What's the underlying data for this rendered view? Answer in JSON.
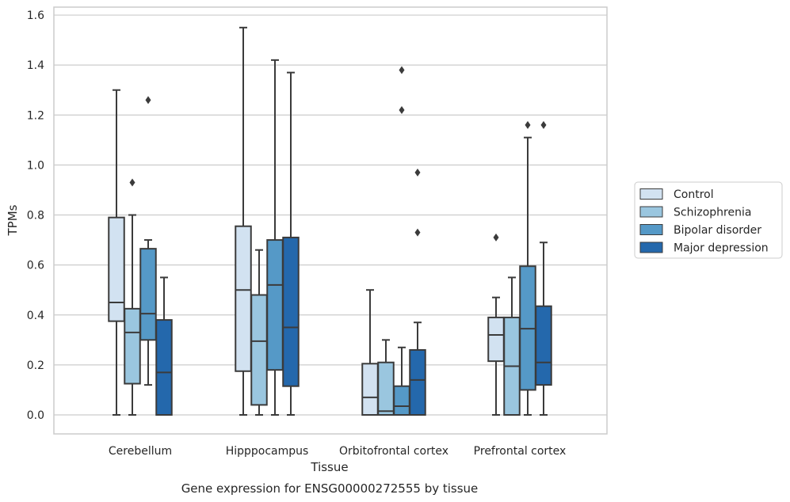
{
  "chart_data": {
    "type": "boxplot",
    "xlabel": "Tissue",
    "ylabel": "TPMs",
    "caption": "Gene expression for ENSG00000272555 by tissue",
    "ylim": [
      -0.075,
      1.63
    ],
    "yticks": [
      "0.0",
      "0.2",
      "0.4",
      "0.6",
      "0.8",
      "1.0",
      "1.2",
      "1.4",
      "1.6"
    ],
    "grid": "horizontal",
    "legend_position": "right",
    "categories": [
      "Cerebellum",
      "Hipppocampus",
      "Orbitofrontal cortex",
      "Prefrontal cortex"
    ],
    "series": [
      {
        "name": "Control",
        "color": "#d2e2f1",
        "boxes": [
          {
            "whislo": 0.0,
            "q1": 0.375,
            "med": 0.45,
            "q3": 0.79,
            "whishi": 1.3,
            "fliers": []
          },
          {
            "whislo": 0.0,
            "q1": 0.175,
            "med": 0.5,
            "q3": 0.755,
            "whishi": 1.55,
            "fliers": []
          },
          {
            "whislo": 0.0,
            "q1": 0.0,
            "med": 0.07,
            "q3": 0.205,
            "whishi": 0.5,
            "fliers": []
          },
          {
            "whislo": 0.0,
            "q1": 0.215,
            "med": 0.32,
            "q3": 0.39,
            "whishi": 0.47,
            "fliers": [
              0.71
            ]
          }
        ]
      },
      {
        "name": "Schizophrenia",
        "color": "#9ac6df",
        "boxes": [
          {
            "whislo": 0.0,
            "q1": 0.125,
            "med": 0.33,
            "q3": 0.425,
            "whishi": 0.8,
            "fliers": [
              0.93
            ]
          },
          {
            "whislo": 0.0,
            "q1": 0.04,
            "med": 0.295,
            "q3": 0.48,
            "whishi": 0.66,
            "fliers": []
          },
          {
            "whislo": 0.0,
            "q1": 0.0,
            "med": 0.015,
            "q3": 0.21,
            "whishi": 0.3,
            "fliers": []
          },
          {
            "whislo": 0.0,
            "q1": 0.0,
            "med": 0.195,
            "q3": 0.39,
            "whishi": 0.55,
            "fliers": []
          }
        ]
      },
      {
        "name": "Bipolar disorder",
        "color": "#5599c7",
        "boxes": [
          {
            "whislo": 0.12,
            "q1": 0.3,
            "med": 0.405,
            "q3": 0.665,
            "whishi": 0.7,
            "fliers": [
              1.26
            ]
          },
          {
            "whislo": 0.0,
            "q1": 0.18,
            "med": 0.52,
            "q3": 0.7,
            "whishi": 1.42,
            "fliers": []
          },
          {
            "whislo": 0.0,
            "q1": 0.0,
            "med": 0.035,
            "q3": 0.115,
            "whishi": 0.27,
            "fliers": [
              1.38,
              1.22
            ]
          },
          {
            "whislo": 0.0,
            "q1": 0.1,
            "med": 0.345,
            "q3": 0.595,
            "whishi": 1.11,
            "fliers": [
              1.16
            ]
          }
        ]
      },
      {
        "name": "Major depression",
        "color": "#2468ac",
        "boxes": [
          {
            "whislo": 0.0,
            "q1": 0.0,
            "med": 0.17,
            "q3": 0.38,
            "whishi": 0.55,
            "fliers": []
          },
          {
            "whislo": 0.0,
            "q1": 0.115,
            "med": 0.35,
            "q3": 0.71,
            "whishi": 1.37,
            "fliers": []
          },
          {
            "whislo": 0.0,
            "q1": 0.0,
            "med": 0.14,
            "q3": 0.26,
            "whishi": 0.37,
            "fliers": [
              0.97,
              0.73
            ]
          },
          {
            "whislo": 0.0,
            "q1": 0.12,
            "med": 0.21,
            "q3": 0.435,
            "whishi": 0.69,
            "fliers": [
              1.16
            ]
          }
        ]
      }
    ]
  },
  "style": {
    "frame_color": "#cccccc",
    "grid_color": "#cccccc",
    "line_color": "#3b3b3b"
  }
}
